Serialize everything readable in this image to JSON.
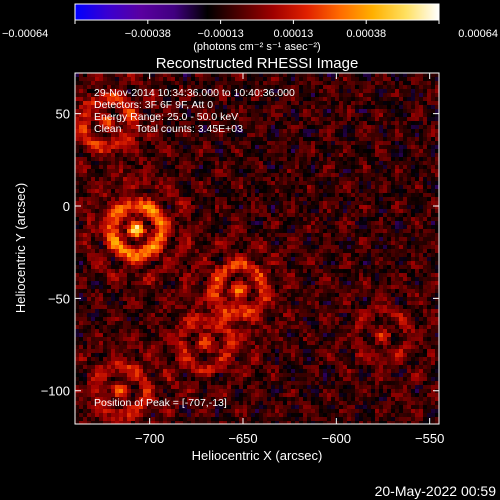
{
  "chart_data": {
    "type": "heatmap",
    "title": "Reconstructed RHESSI Image",
    "xlabel": "Heliocentric X (arcsec)",
    "ylabel": "Heliocentric Y (arcsec)",
    "xlim": [
      -740,
      -545
    ],
    "ylim": [
      -118,
      72
    ],
    "x_ticks": [
      {
        "value": -700,
        "label": "−700"
      },
      {
        "value": -650,
        "label": "−650"
      },
      {
        "value": -600,
        "label": "−600"
      },
      {
        "value": -550,
        "label": "−550"
      }
    ],
    "y_ticks": [
      {
        "value": 50,
        "label": "50"
      },
      {
        "value": 0,
        "label": "0"
      },
      {
        "value": -50,
        "label": "−50"
      },
      {
        "value": -100,
        "label": "−100"
      }
    ],
    "colorbar": {
      "min": -0.00064,
      "max": 0.00064,
      "units": "(photons cm⁻² s⁻¹ asec⁻²)",
      "tick_labels": [
        "−0.00064",
        "−0.00038",
        "−0.00013",
        "0.00013",
        "0.00038",
        "0.00064"
      ],
      "colors": [
        "#0000ff",
        "#3a00d0",
        "#5a00a0",
        "#400080",
        "#000000",
        "#500000",
        "#a00000",
        "#e02000",
        "#ff6a00",
        "#ffb000",
        "#ffe060",
        "#ffffff"
      ]
    },
    "annotations": [
      "29-Nov-2014 10:34:36.000 to 10:40:36.000",
      "Detectors: 3F 6F 9F, Att 0",
      "Energy Range: 25.0 - 50.0 keV",
      "Clean     Total counts: 3.45E+03"
    ],
    "peak_label": "Position of Peak = [-707,-13]",
    "peak_position": [
      -707,
      -13
    ],
    "sources": [
      {
        "x": -707,
        "y": -13,
        "peak": 0.00064
      },
      {
        "x": -723,
        "y": 45,
        "peak": 0.0004
      },
      {
        "x": -652,
        "y": -45,
        "peak": 0.00045
      },
      {
        "x": -715,
        "y": -100,
        "peak": 0.00035
      },
      {
        "x": -670,
        "y": -75,
        "peak": 0.0003
      },
      {
        "x": -575,
        "y": -70,
        "peak": 0.0002
      }
    ]
  },
  "footer": {
    "timestamp": "20-May-2022 00:59"
  }
}
